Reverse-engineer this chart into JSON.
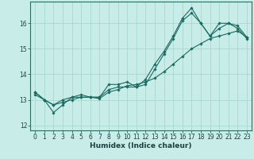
{
  "title": "",
  "xlabel": "Humidex (Indice chaleur)",
  "ylabel": "",
  "bg_color": "#c8ece8",
  "grid_color": "#a8d8d0",
  "line_color": "#1a6b60",
  "marker": "D",
  "markersize": 1.8,
  "linewidth": 0.8,
  "xlim": [
    -0.5,
    23.5
  ],
  "ylim": [
    11.8,
    16.85
  ],
  "xticks": [
    0,
    1,
    2,
    3,
    4,
    5,
    6,
    7,
    8,
    9,
    10,
    11,
    12,
    13,
    14,
    15,
    16,
    17,
    18,
    19,
    20,
    21,
    22,
    23
  ],
  "yticks": [
    12,
    13,
    14,
    15,
    16
  ],
  "line1_x": [
    0,
    1,
    2,
    3,
    4,
    5,
    6,
    7,
    8,
    9,
    10,
    11,
    12,
    13,
    14,
    15,
    16,
    17,
    18,
    19,
    20,
    21,
    22,
    23
  ],
  "line1_y": [
    13.3,
    13.0,
    12.5,
    12.8,
    13.1,
    13.1,
    13.1,
    13.1,
    13.6,
    13.6,
    13.7,
    13.5,
    13.6,
    14.2,
    14.8,
    15.4,
    16.1,
    16.4,
    16.0,
    15.5,
    16.0,
    16.0,
    15.8,
    15.4
  ],
  "line2_x": [
    0,
    1,
    2,
    3,
    4,
    5,
    6,
    7,
    8,
    9,
    10,
    11,
    12,
    13,
    14,
    15,
    16,
    17,
    18,
    19,
    20,
    21,
    22,
    23
  ],
  "line2_y": [
    13.3,
    13.0,
    12.8,
    13.0,
    13.1,
    13.2,
    13.1,
    13.1,
    13.4,
    13.5,
    13.5,
    13.5,
    13.8,
    14.4,
    14.9,
    15.5,
    16.2,
    16.6,
    16.0,
    15.5,
    15.8,
    16.0,
    15.9,
    15.45
  ],
  "line3_x": [
    0,
    1,
    2,
    3,
    4,
    5,
    6,
    7,
    8,
    9,
    10,
    11,
    12,
    13,
    14,
    15,
    16,
    17,
    18,
    19,
    20,
    21,
    22,
    23
  ],
  "line3_y": [
    13.2,
    13.0,
    12.8,
    12.9,
    13.0,
    13.1,
    13.1,
    13.05,
    13.3,
    13.4,
    13.55,
    13.6,
    13.7,
    13.85,
    14.1,
    14.4,
    14.7,
    15.0,
    15.2,
    15.4,
    15.5,
    15.6,
    15.7,
    15.45
  ],
  "tick_fontsize": 5.5,
  "xlabel_fontsize": 6.5,
  "tick_color": "#1a4040",
  "spine_color": "#2a7060"
}
